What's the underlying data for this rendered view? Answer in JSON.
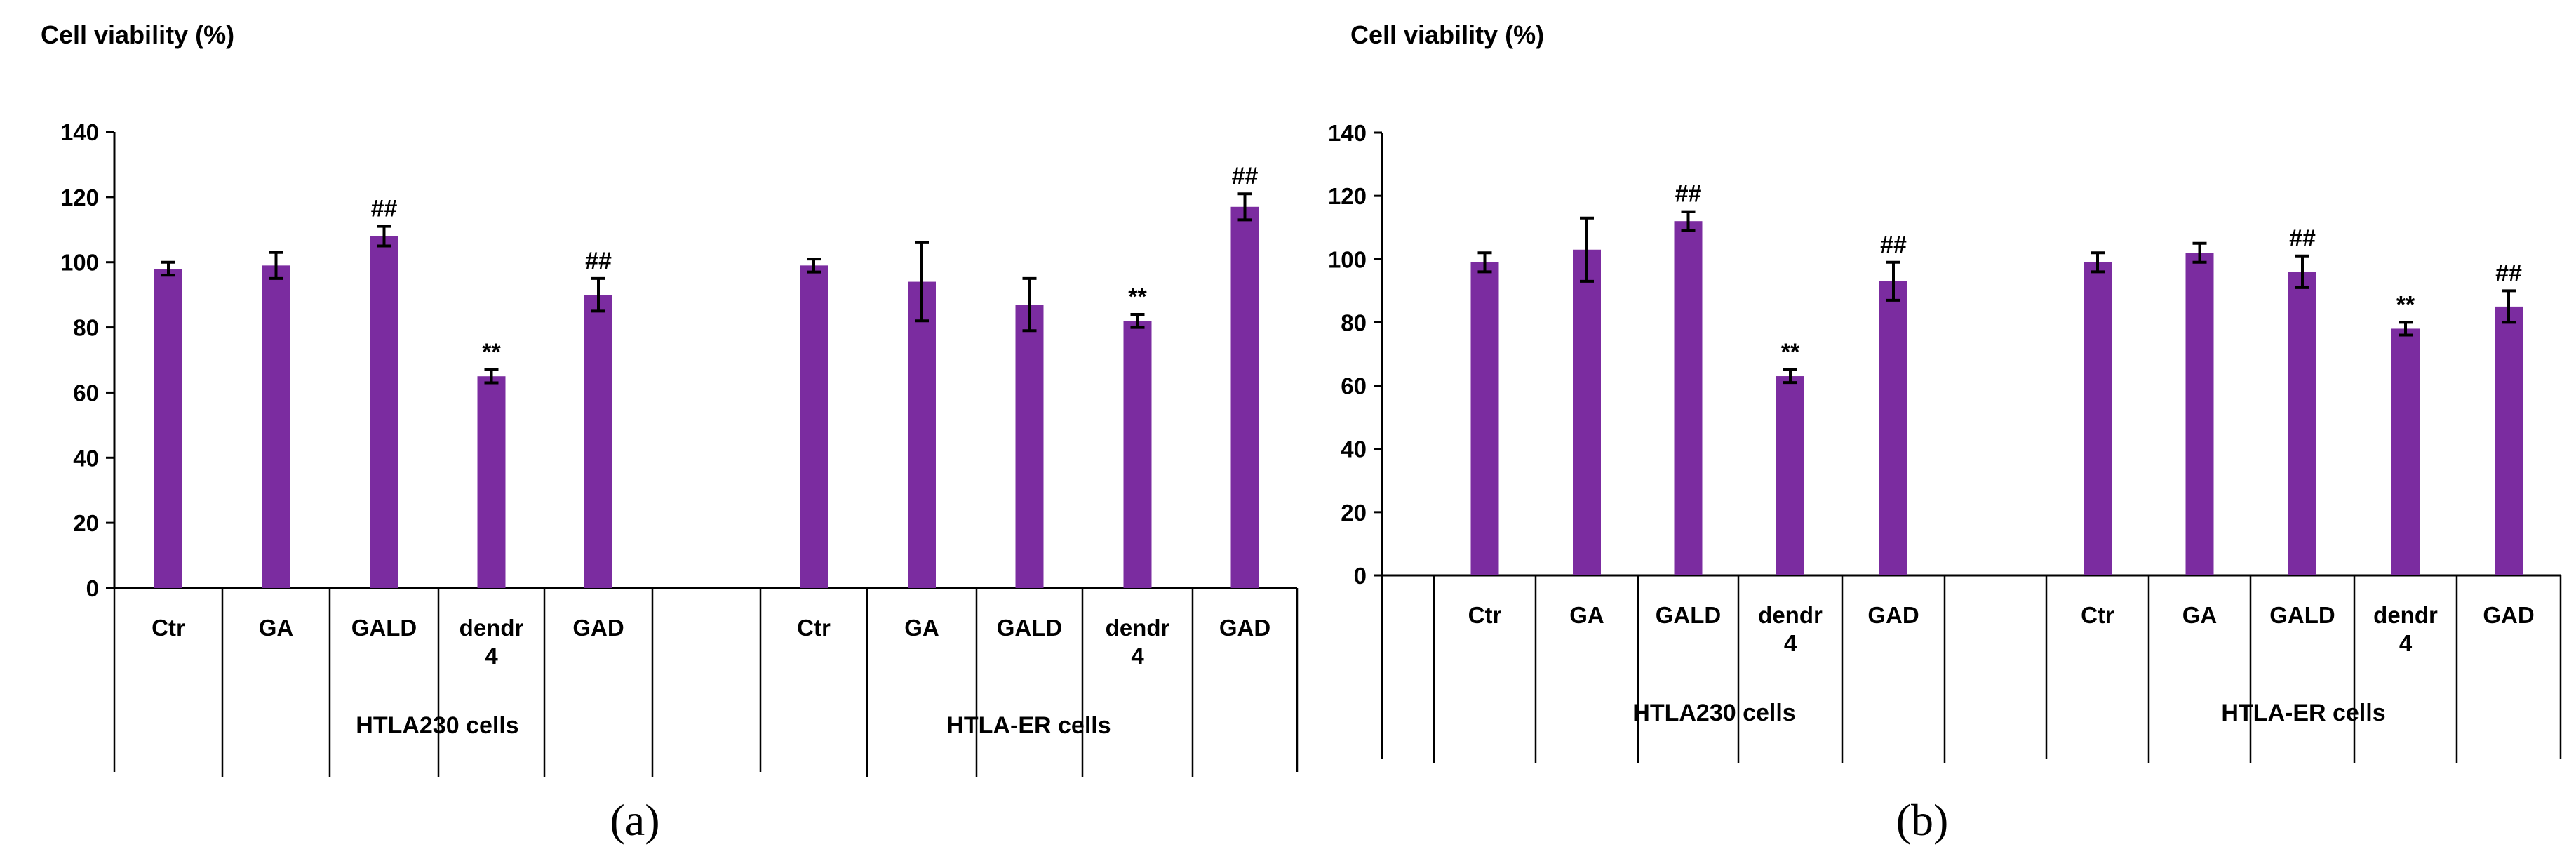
{
  "chart_data": [
    {
      "type": "bar",
      "panel_label": "(a)",
      "ylabel": "Cell viability (%)",
      "ylim": [
        0,
        140
      ],
      "yticks": [
        "0",
        "20",
        "40",
        "60",
        "80",
        "100",
        "120",
        "140"
      ],
      "bar_color": "#7B2CA0",
      "error_color": "#000000",
      "groups": [
        {
          "name": "HTLA230 cells",
          "bars": [
            {
              "label": "Ctr",
              "value": 98,
              "err": 2,
              "mark": ""
            },
            {
              "label": "GA",
              "value": 99,
              "err": 4,
              "mark": ""
            },
            {
              "label": "GALD",
              "value": 108,
              "err": 3,
              "mark": "##"
            },
            {
              "label": "dendr 4",
              "value": 65,
              "err": 2,
              "mark": "**"
            },
            {
              "label": "GAD",
              "value": 90,
              "err": 5,
              "mark": "##"
            }
          ]
        },
        {
          "name": "HTLA-ER cells",
          "bars": [
            {
              "label": "Ctr",
              "value": 99,
              "err": 2,
              "mark": ""
            },
            {
              "label": "GA",
              "value": 94,
              "err": 12,
              "mark": ""
            },
            {
              "label": "GALD",
              "value": 87,
              "err": 8,
              "mark": ""
            },
            {
              "label": "dendr 4",
              "value": 82,
              "err": 2,
              "mark": "**"
            },
            {
              "label": "GAD",
              "value": 117,
              "err": 4,
              "mark": "##"
            }
          ]
        }
      ]
    },
    {
      "type": "bar",
      "panel_label": "(b)",
      "ylabel": "Cell viability (%)",
      "ylim": [
        0,
        140
      ],
      "yticks": [
        "0",
        "20",
        "40",
        "60",
        "80",
        "100",
        "120",
        "140"
      ],
      "bar_color": "#7B2CA0",
      "error_color": "#000000",
      "groups": [
        {
          "name": "HTLA230 cells",
          "bars": [
            {
              "label": "Ctr",
              "value": 99,
              "err": 3,
              "mark": ""
            },
            {
              "label": "GA",
              "value": 103,
              "err": 10,
              "mark": ""
            },
            {
              "label": "GALD",
              "value": 112,
              "err": 3,
              "mark": "##"
            },
            {
              "label": "dendr 4",
              "value": 63,
              "err": 2,
              "mark": "**"
            },
            {
              "label": "GAD",
              "value": 93,
              "err": 6,
              "mark": "##"
            }
          ]
        },
        {
          "name": "HTLA-ER cells",
          "bars": [
            {
              "label": "Ctr",
              "value": 99,
              "err": 3,
              "mark": ""
            },
            {
              "label": "GA",
              "value": 102,
              "err": 3,
              "mark": ""
            },
            {
              "label": "GALD",
              "value": 96,
              "err": 5,
              "mark": "##"
            },
            {
              "label": "dendr 4",
              "value": 78,
              "err": 2,
              "mark": "**"
            },
            {
              "label": "GAD",
              "value": 85,
              "err": 5,
              "mark": "##"
            }
          ]
        }
      ]
    }
  ]
}
